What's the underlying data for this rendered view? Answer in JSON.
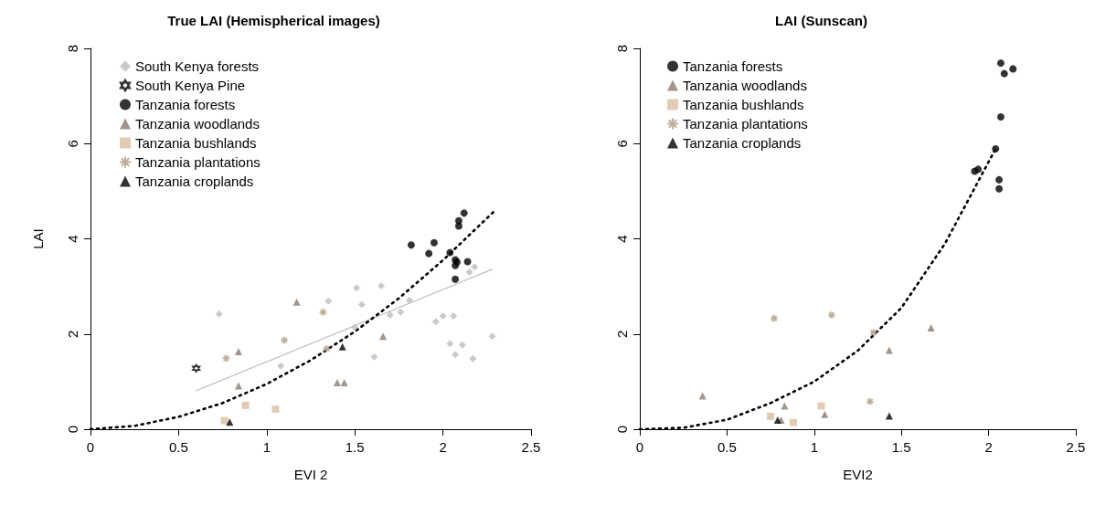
{
  "chart_data": [
    {
      "type": "scatter",
      "title": "True LAI (Hemispherical images)",
      "xlabel": "EVI 2",
      "ylabel": "LAI",
      "xlim": [
        0,
        2.5
      ],
      "ylim": [
        0,
        8
      ],
      "xticks": [
        0.0,
        0.5,
        1.0,
        1.5,
        2.0,
        2.5
      ],
      "yticks": [
        0,
        2,
        4,
        6,
        8
      ],
      "grid": false,
      "legend": "top left",
      "series": [
        {
          "name": "South Kenya forests",
          "color": "#bdbdbd",
          "marker": "diamond",
          "x": [
            0.73,
            1.35,
            1.51,
            1.65,
            1.54,
            1.81,
            1.7,
            1.76,
            1.5,
            1.08,
            1.61,
            1.96,
            2.0,
            2.06,
            2.04,
            2.11,
            2.07,
            2.17,
            2.28,
            2.15,
            2.18
          ],
          "values": [
            2.42,
            2.69,
            2.97,
            3.01,
            2.62,
            2.71,
            2.4,
            2.46,
            2.14,
            1.33,
            1.52,
            2.26,
            2.38,
            2.38,
            1.8,
            1.77,
            1.57,
            1.48,
            1.95,
            3.3,
            3.41
          ]
        },
        {
          "name": "South Kenya Pine",
          "color": "#000000",
          "marker": "star",
          "x": [
            0.6
          ],
          "values": [
            1.28
          ]
        },
        {
          "name": "Tanzania forests",
          "color": "#000000",
          "marker": "circle",
          "x": [
            1.82,
            1.95,
            1.92,
            2.04,
            2.07,
            2.08,
            2.07,
            2.14,
            2.07,
            2.09,
            2.09,
            2.12
          ],
          "values": [
            3.87,
            3.92,
            3.69,
            3.71,
            3.56,
            3.51,
            3.44,
            3.52,
            3.15,
            4.38,
            4.27,
            4.54
          ]
        },
        {
          "name": "Tanzania woodlands",
          "color": "#8c7b6b",
          "marker": "triangle",
          "x": [
            1.17,
            0.84,
            0.84,
            1.66,
            1.4,
            1.44
          ],
          "values": [
            2.67,
            1.63,
            0.91,
            1.95,
            0.98,
            0.98
          ]
        },
        {
          "name": "Tanzania bushlands",
          "color": "#d9bfa0",
          "marker": "square",
          "x": [
            0.88,
            1.05,
            0.76
          ],
          "values": [
            0.5,
            0.42,
            0.18
          ]
        },
        {
          "name": "Tanzania plantations",
          "color": "#b09a80",
          "marker": "cross",
          "x": [
            0.77,
            1.1,
            1.32,
            1.34
          ],
          "values": [
            1.49,
            1.87,
            2.46,
            1.69
          ]
        },
        {
          "name": "Tanzania croplands",
          "color": "#000000",
          "marker": "triangle",
          "x": [
            0.79,
            1.43
          ],
          "values": [
            0.15,
            1.73
          ]
        },
        {
          "type": "line",
          "color": "#bbbbbb",
          "marker": "none",
          "line_style": "solid",
          "x": [
            0.6,
            2.28
          ],
          "values": [
            0.81,
            3.36
          ]
        },
        {
          "type": "line",
          "color": "#000000",
          "marker": "none",
          "line_style": "dotted",
          "x": [
            0.0,
            0.25,
            0.5,
            0.75,
            1.0,
            1.25,
            1.5,
            1.75,
            2.0,
            2.3
          ],
          "values": [
            0.0,
            0.07,
            0.26,
            0.55,
            0.95,
            1.45,
            2.05,
            2.75,
            3.55,
            4.61
          ]
        }
      ]
    },
    {
      "type": "scatter",
      "title": "LAI (Sunscan)",
      "xlabel": "EVI2",
      "xlim": [
        0,
        2.5
      ],
      "ylim": [
        0,
        8
      ],
      "xticks": [
        0.0,
        0.5,
        1.0,
        1.5,
        2.0,
        2.5
      ],
      "yticks": [
        0,
        2,
        4,
        6,
        8
      ],
      "grid": false,
      "legend": "top left",
      "series": [
        {
          "name": "Tanzania forests",
          "color": "#000000",
          "marker": "circle",
          "x": [
            2.07,
            2.09,
            2.14,
            2.07,
            2.04,
            1.92,
            1.94,
            2.06,
            2.06
          ],
          "values": [
            7.69,
            7.47,
            7.57,
            6.56,
            5.89,
            5.42,
            5.46,
            5.24,
            5.05
          ]
        },
        {
          "name": "Tanzania woodlands",
          "color": "#8c7b6b",
          "marker": "triangle",
          "x": [
            0.36,
            0.83,
            0.81,
            1.06,
            1.43,
            1.67
          ],
          "values": [
            0.7,
            0.49,
            0.19,
            0.31,
            1.66,
            2.13
          ]
        },
        {
          "name": "Tanzania bushlands",
          "color": "#d9bfa0",
          "marker": "square",
          "x": [
            1.04,
            0.88,
            0.75
          ],
          "values": [
            0.49,
            0.14,
            0.27
          ]
        },
        {
          "name": "Tanzania plantations",
          "color": "#b09a80",
          "marker": "cross",
          "x": [
            0.77,
            1.1,
            1.34,
            1.32
          ],
          "values": [
            2.33,
            2.4,
            2.03,
            0.58
          ]
        },
        {
          "name": "Tanzania croplands",
          "color": "#000000",
          "marker": "triangle",
          "x": [
            0.79,
            1.43
          ],
          "values": [
            0.19,
            0.28
          ]
        },
        {
          "type": "line",
          "color": "#000000",
          "marker": "none",
          "line_style": "dotted",
          "x": [
            0.0,
            0.25,
            0.5,
            0.75,
            1.0,
            1.25,
            1.5,
            1.75,
            2.04
          ],
          "values": [
            0.0,
            0.03,
            0.2,
            0.55,
            1.0,
            1.65,
            2.55,
            3.9,
            5.89
          ]
        }
      ]
    }
  ]
}
